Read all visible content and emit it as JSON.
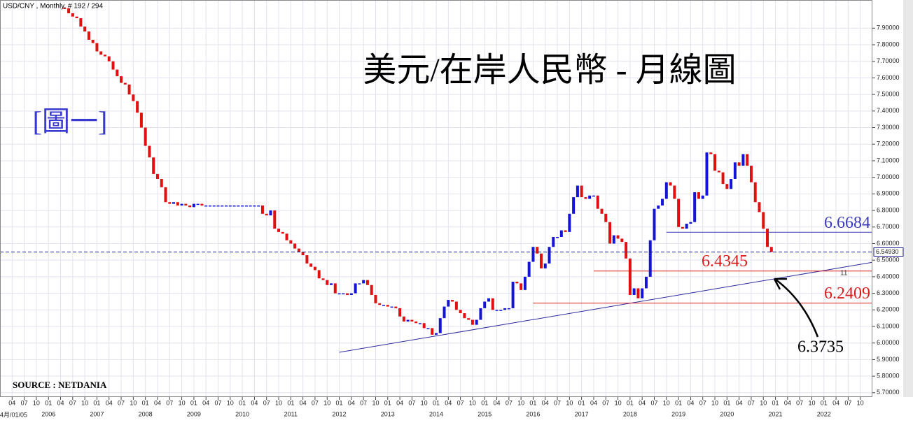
{
  "chart_data": {
    "type": "candlestick",
    "header": "USD/CNY , Monthly, # 192 / 294",
    "title": "美元/在岸人民幣 - 月線圖",
    "figure_label": "[圖一]",
    "source": "SOURCE : NETDANIA",
    "start_label": "4月/01/05",
    "note": "11",
    "ylim": [
      5.674,
      8.07
    ],
    "xlim": [
      "2005-01",
      "2023-01"
    ],
    "yticks": [
      {
        "value": 5.7,
        "label": "5.70000"
      },
      {
        "value": 5.8,
        "label": "5.80000"
      },
      {
        "value": 5.9,
        "label": "5.90000"
      },
      {
        "value": 6.0,
        "label": "6.00000"
      },
      {
        "value": 6.1,
        "label": "6.10000"
      },
      {
        "value": 6.2,
        "label": "6.20000"
      },
      {
        "value": 6.3,
        "label": "6.30000"
      },
      {
        "value": 6.4,
        "label": "6.40000"
      },
      {
        "value": 6.5,
        "label": "6.50000"
      },
      {
        "value": 6.6,
        "label": "6.60000"
      },
      {
        "value": 6.7,
        "label": "6.70000"
      },
      {
        "value": 6.8,
        "label": "6.80000"
      },
      {
        "value": 6.9,
        "label": "6.90000"
      },
      {
        "value": 7.0,
        "label": "7.00000"
      },
      {
        "value": 7.1,
        "label": "7.10000"
      },
      {
        "value": 7.2,
        "label": "7.20000"
      },
      {
        "value": 7.3,
        "label": "7.30000"
      },
      {
        "value": 7.4,
        "label": "7.40000"
      },
      {
        "value": 7.5,
        "label": "7.50000"
      },
      {
        "value": 7.6,
        "label": "7.60000"
      },
      {
        "value": 7.7,
        "label": "7.70000"
      },
      {
        "value": 7.8,
        "label": "7.80000"
      },
      {
        "value": 7.9,
        "label": "7.90000"
      }
    ],
    "xticks": [
      {
        "value": "2005-04",
        "label": "04"
      },
      {
        "value": "2005-07",
        "label": "07"
      },
      {
        "value": "2005-10",
        "label": "10"
      },
      {
        "value": "2006-01",
        "label": "01"
      },
      {
        "value": "2006-04",
        "label": "04"
      },
      {
        "value": "2006-07",
        "label": "07"
      },
      {
        "value": "2006-10",
        "label": "10"
      },
      {
        "value": "2007-01",
        "label": "01"
      },
      {
        "value": "2007-04",
        "label": "04"
      },
      {
        "value": "2007-07",
        "label": "07"
      },
      {
        "value": "2007-10",
        "label": "10"
      },
      {
        "value": "2008-01",
        "label": "01"
      },
      {
        "value": "2008-04",
        "label": "04"
      },
      {
        "value": "2008-07",
        "label": "07"
      },
      {
        "value": "2008-10",
        "label": "10"
      },
      {
        "value": "2009-01",
        "label": "01"
      },
      {
        "value": "2009-04",
        "label": "04"
      },
      {
        "value": "2009-07",
        "label": "07"
      },
      {
        "value": "2009-10",
        "label": "10"
      },
      {
        "value": "2010-01",
        "label": "01"
      },
      {
        "value": "2010-04",
        "label": "04"
      },
      {
        "value": "2010-07",
        "label": "07"
      },
      {
        "value": "2010-10",
        "label": "10"
      },
      {
        "value": "2011-01",
        "label": "01"
      },
      {
        "value": "2011-04",
        "label": "04"
      },
      {
        "value": "2011-07",
        "label": "07"
      },
      {
        "value": "2011-10",
        "label": "10"
      },
      {
        "value": "2012-01",
        "label": "01"
      },
      {
        "value": "2012-04",
        "label": "04"
      },
      {
        "value": "2012-07",
        "label": "07"
      },
      {
        "value": "2012-10",
        "label": "10"
      },
      {
        "value": "2013-01",
        "label": "01"
      },
      {
        "value": "2013-04",
        "label": "04"
      },
      {
        "value": "2013-07",
        "label": "07"
      },
      {
        "value": "2013-10",
        "label": "10"
      },
      {
        "value": "2014-01",
        "label": "01"
      },
      {
        "value": "2014-04",
        "label": "04"
      },
      {
        "value": "2014-07",
        "label": "07"
      },
      {
        "value": "2014-10",
        "label": "10"
      },
      {
        "value": "2015-01",
        "label": "01"
      },
      {
        "value": "2015-04",
        "label": "04"
      },
      {
        "value": "2015-07",
        "label": "07"
      },
      {
        "value": "2015-10",
        "label": "10"
      },
      {
        "value": "2016-01",
        "label": "01"
      },
      {
        "value": "2016-04",
        "label": "04"
      },
      {
        "value": "2016-07",
        "label": "07"
      },
      {
        "value": "2016-10",
        "label": "10"
      },
      {
        "value": "2017-01",
        "label": "01"
      },
      {
        "value": "2017-04",
        "label": "04"
      },
      {
        "value": "2017-07",
        "label": "07"
      },
      {
        "value": "2017-10",
        "label": "10"
      },
      {
        "value": "2018-01",
        "label": "01"
      },
      {
        "value": "2018-04",
        "label": "04"
      },
      {
        "value": "2018-07",
        "label": "07"
      },
      {
        "value": "2018-10",
        "label": "10"
      },
      {
        "value": "2019-01",
        "label": "01"
      },
      {
        "value": "2019-04",
        "label": "04"
      },
      {
        "value": "2019-07",
        "label": "07"
      },
      {
        "value": "2019-10",
        "label": "10"
      },
      {
        "value": "2020-01",
        "label": "01"
      },
      {
        "value": "2020-04",
        "label": "04"
      },
      {
        "value": "2020-07",
        "label": "07"
      },
      {
        "value": "2020-10",
        "label": "10"
      },
      {
        "value": "2021-01",
        "label": "01"
      },
      {
        "value": "2021-04",
        "label": "04"
      },
      {
        "value": "2021-07",
        "label": "07"
      },
      {
        "value": "2021-10",
        "label": "10"
      },
      {
        "value": "2022-01",
        "label": "01"
      },
      {
        "value": "2022-04",
        "label": "04"
      },
      {
        "value": "2022-07",
        "label": "07"
      },
      {
        "value": "2022-10",
        "label": "10"
      }
    ],
    "year_labels": [
      {
        "value": "2006-01",
        "label": "2006"
      },
      {
        "value": "2007-01",
        "label": "2007"
      },
      {
        "value": "2008-01",
        "label": "2008"
      },
      {
        "value": "2009-01",
        "label": "2009"
      },
      {
        "value": "2010-01",
        "label": "2010"
      },
      {
        "value": "2011-01",
        "label": "2011"
      },
      {
        "value": "2012-01",
        "label": "2012"
      },
      {
        "value": "2013-01",
        "label": "2013"
      },
      {
        "value": "2014-01",
        "label": "2014"
      },
      {
        "value": "2015-01",
        "label": "2015"
      },
      {
        "value": "2016-01",
        "label": "2016"
      },
      {
        "value": "2017-01",
        "label": "2017"
      },
      {
        "value": "2018-01",
        "label": "2018"
      },
      {
        "value": "2019-01",
        "label": "2019"
      },
      {
        "value": "2020-01",
        "label": "2020"
      },
      {
        "value": "2021-01",
        "label": "2021"
      },
      {
        "value": "2022-01",
        "label": "2022"
      }
    ],
    "x": [
      "2006-05",
      "2006-06",
      "2006-07",
      "2006-08",
      "2006-09",
      "2006-10",
      "2006-11",
      "2006-12",
      "2007-01",
      "2007-02",
      "2007-03",
      "2007-04",
      "2007-05",
      "2007-06",
      "2007-07",
      "2007-08",
      "2007-09",
      "2007-10",
      "2007-11",
      "2007-12",
      "2008-01",
      "2008-02",
      "2008-03",
      "2008-04",
      "2008-05",
      "2008-06",
      "2008-07",
      "2008-08",
      "2008-09",
      "2008-10",
      "2008-11",
      "2008-12",
      "2009-01",
      "2009-02",
      "2009-03",
      "2009-04",
      "2009-05",
      "2009-06",
      "2009-07",
      "2009-08",
      "2009-09",
      "2009-10",
      "2009-11",
      "2009-12",
      "2010-01",
      "2010-02",
      "2010-03",
      "2010-04",
      "2010-05",
      "2010-06",
      "2010-07",
      "2010-08",
      "2010-09",
      "2010-10",
      "2010-11",
      "2010-12",
      "2011-01",
      "2011-02",
      "2011-03",
      "2011-04",
      "2011-05",
      "2011-06",
      "2011-07",
      "2011-08",
      "2011-09",
      "2011-10",
      "2011-11",
      "2011-12",
      "2012-01",
      "2012-02",
      "2012-03",
      "2012-04",
      "2012-05",
      "2012-06",
      "2012-07",
      "2012-08",
      "2012-09",
      "2012-10",
      "2012-11",
      "2012-12",
      "2013-01",
      "2013-02",
      "2013-03",
      "2013-04",
      "2013-05",
      "2013-06",
      "2013-07",
      "2013-08",
      "2013-09",
      "2013-10",
      "2013-11",
      "2013-12",
      "2014-01",
      "2014-02",
      "2014-03",
      "2014-04",
      "2014-05",
      "2014-06",
      "2014-07",
      "2014-08",
      "2014-09",
      "2014-10",
      "2014-11",
      "2014-12",
      "2015-01",
      "2015-02",
      "2015-03",
      "2015-04",
      "2015-05",
      "2015-06",
      "2015-07",
      "2015-08",
      "2015-09",
      "2015-10",
      "2015-11",
      "2015-12",
      "2016-01",
      "2016-02",
      "2016-03",
      "2016-04",
      "2016-05",
      "2016-06",
      "2016-07",
      "2016-08",
      "2016-09",
      "2016-10",
      "2016-11",
      "2016-12",
      "2017-01",
      "2017-02",
      "2017-03",
      "2017-04",
      "2017-05",
      "2017-06",
      "2017-07",
      "2017-08",
      "2017-09",
      "2017-10",
      "2017-11",
      "2017-12",
      "2018-01",
      "2018-02",
      "2018-03",
      "2018-04",
      "2018-05",
      "2018-06",
      "2018-07",
      "2018-08",
      "2018-09",
      "2018-10",
      "2018-11",
      "2018-12",
      "2019-01",
      "2019-02",
      "2019-03",
      "2019-04",
      "2019-05",
      "2019-06",
      "2019-07",
      "2019-08",
      "2019-09",
      "2019-10",
      "2019-11",
      "2019-12",
      "2020-01",
      "2020-02",
      "2020-03",
      "2020-04",
      "2020-05",
      "2020-06",
      "2020-07",
      "2020-08",
      "2020-09",
      "2020-10",
      "2020-11",
      "2020-12"
    ],
    "series": [
      {
        "name": "USD/CNY",
        "up_color": "#1414d8",
        "down_color": "#e01010",
        "values": [
          8.02,
          7.99,
          7.97,
          7.96,
          7.91,
          7.88,
          7.83,
          7.81,
          7.76,
          7.74,
          7.73,
          7.7,
          7.65,
          7.61,
          7.57,
          7.56,
          7.5,
          7.46,
          7.39,
          7.3,
          7.19,
          7.12,
          7.02,
          6.99,
          6.94,
          6.85,
          6.84,
          6.85,
          6.83,
          6.84,
          6.83,
          6.82,
          6.84,
          6.84,
          6.83,
          6.83,
          6.83,
          6.83,
          6.83,
          6.83,
          6.83,
          6.83,
          6.83,
          6.83,
          6.83,
          6.83,
          6.83,
          6.83,
          6.83,
          6.78,
          6.77,
          6.8,
          6.69,
          6.67,
          6.66,
          6.62,
          6.6,
          6.57,
          6.55,
          6.53,
          6.48,
          6.46,
          6.44,
          6.39,
          6.38,
          6.35,
          6.36,
          6.3,
          6.3,
          6.3,
          6.29,
          6.3,
          6.36,
          6.36,
          6.38,
          6.35,
          6.29,
          6.24,
          6.23,
          6.23,
          6.22,
          6.22,
          6.21,
          6.16,
          6.13,
          6.14,
          6.13,
          6.12,
          6.12,
          6.09,
          6.09,
          6.05,
          6.06,
          6.15,
          6.22,
          6.26,
          6.25,
          6.2,
          6.18,
          6.15,
          6.14,
          6.11,
          6.14,
          6.21,
          6.25,
          6.27,
          6.2,
          6.2,
          6.2,
          6.21,
          6.21,
          6.37,
          6.36,
          6.32,
          6.4,
          6.49,
          6.58,
          6.54,
          6.45,
          6.48,
          6.58,
          6.64,
          6.64,
          6.68,
          6.67,
          6.78,
          6.88,
          6.95,
          6.88,
          6.87,
          6.89,
          6.89,
          6.81,
          6.78,
          6.73,
          6.6,
          6.65,
          6.63,
          6.61,
          6.51,
          6.29,
          6.33,
          6.27,
          6.33,
          6.4,
          6.62,
          6.81,
          6.83,
          6.87,
          6.97,
          6.95,
          6.87,
          6.7,
          6.69,
          6.72,
          6.73,
          6.91,
          6.87,
          6.89,
          7.15,
          7.14,
          7.04,
          7.03,
          6.96,
          6.93,
          6.99,
          7.09,
          7.07,
          7.14,
          7.07,
          6.97,
          6.85,
          6.79,
          6.69,
          6.58,
          6.5493
        ]
      }
    ],
    "current": {
      "value": 6.5493,
      "label": "6.54930",
      "color": "#1a1a8a"
    },
    "levels": [
      {
        "value": 6.6684,
        "label": "6.6684",
        "from": "2018-10",
        "color": "#3a3ab8"
      },
      {
        "value": 6.4345,
        "label": "6.4345",
        "from": "2017-04",
        "color": "#d81c1c"
      },
      {
        "value": 6.2409,
        "label": "6.2409",
        "from": "2016-01",
        "color": "#d81c1c"
      }
    ],
    "trendline": {
      "points": [
        [
          "2012-01",
          5.944
        ],
        [
          "2023-01",
          6.487
        ]
      ],
      "color": "#2a2a9a"
    },
    "annotation": {
      "value": 6.3735,
      "label": "6.3735"
    },
    "grid": true
  }
}
